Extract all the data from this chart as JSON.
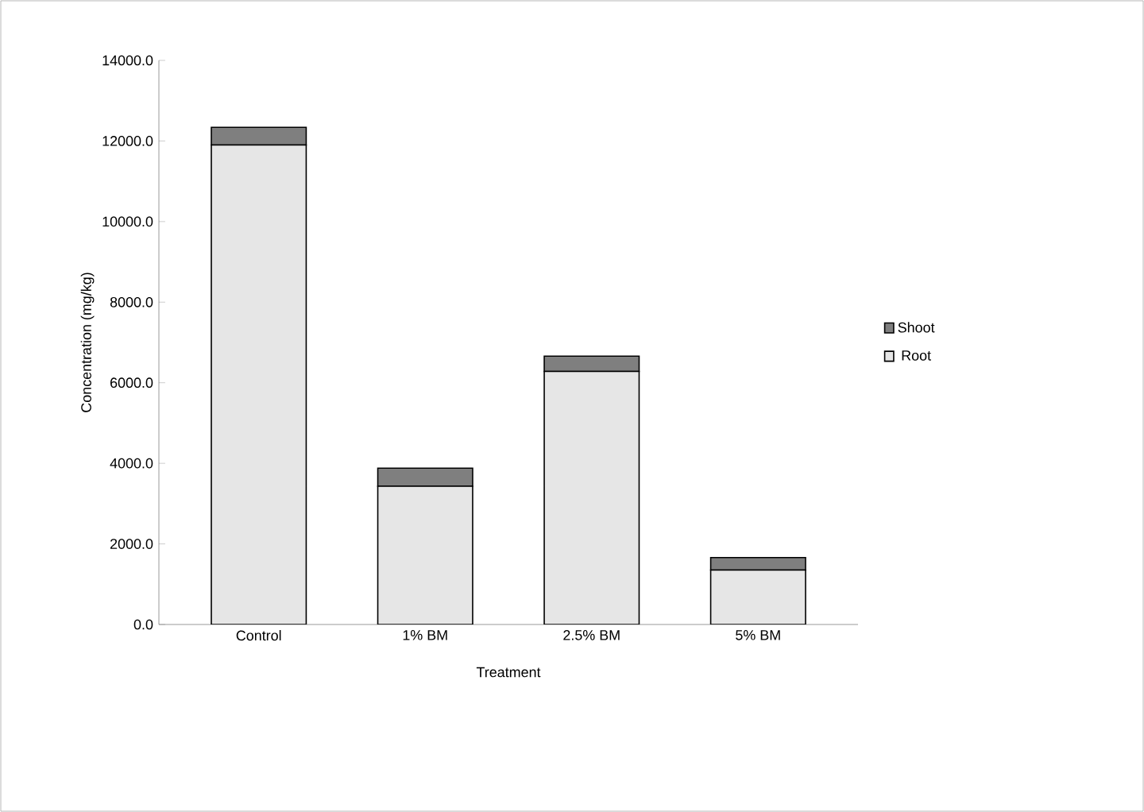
{
  "chart_data": {
    "type": "bar",
    "stacked": true,
    "xlabel": "Treatment",
    "ylabel": "Concentration (mg/kg)",
    "categories": [
      "Control",
      "1% BM",
      "2.5% BM",
      "5% BM"
    ],
    "series": [
      {
        "name": "Root",
        "color": "#e6e6e6",
        "values": [
          11900,
          3430,
          6280,
          1350
        ]
      },
      {
        "name": "Shoot",
        "color": "#7f7f7f",
        "values": [
          440,
          450,
          380,
          310
        ]
      }
    ],
    "ylim": [
      0,
      14000
    ],
    "yticks": [
      {
        "value": 0,
        "label": "0.0"
      },
      {
        "value": 2000,
        "label": "2000.0"
      },
      {
        "value": 4000,
        "label": "4000.0"
      },
      {
        "value": 6000,
        "label": "6000.0"
      },
      {
        "value": 8000,
        "label": "8000.0"
      },
      {
        "value": 10000,
        "label": "10000.0"
      },
      {
        "value": 12000,
        "label": "12000.0"
      },
      {
        "value": 14000,
        "label": "14000.0"
      }
    ],
    "legend": "right",
    "grid": false
  }
}
